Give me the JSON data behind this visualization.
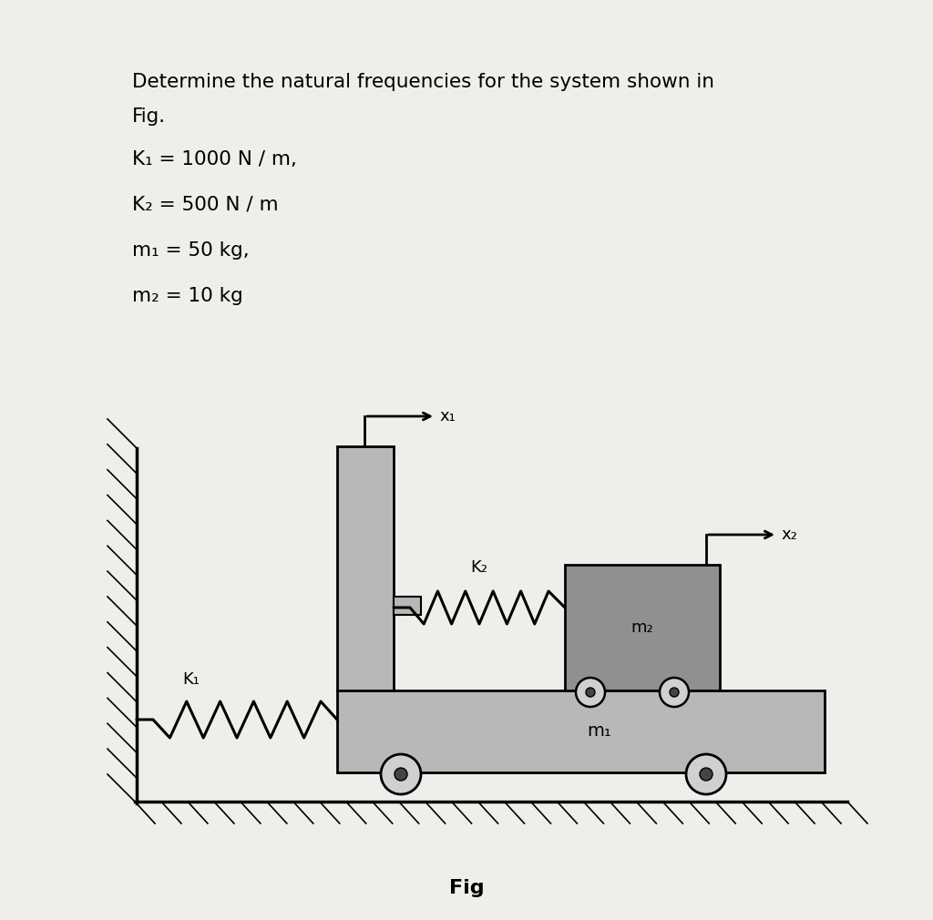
{
  "bg_color": "#f0eeea",
  "title_line1": "Determine the natural frequencies for the system shown in",
  "title_line2": "Fig.",
  "params": [
    "K₁ = 1000 N / m,",
    "K₂ = 500 N / m",
    "m₁ = 50 kg,",
    "m₂ = 10 kg"
  ],
  "fig_label": "Fig",
  "cart_color": "#b8b8b8",
  "m2_color": "#909090",
  "wall_face_color": "#888888"
}
